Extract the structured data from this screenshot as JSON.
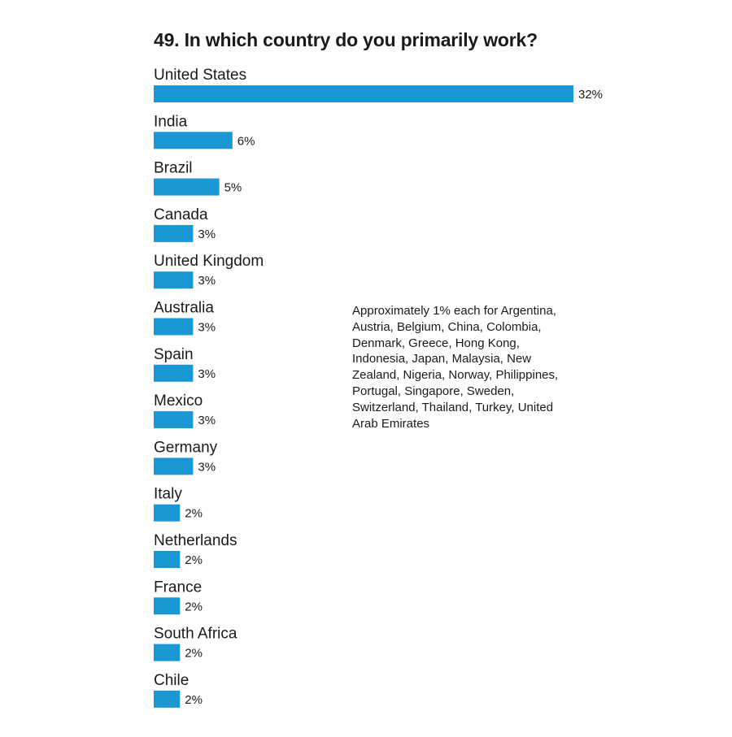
{
  "chart_data": {
    "type": "bar",
    "orientation": "horizontal",
    "title": "49. In which country do you primarily work?",
    "xlabel": "",
    "ylabel": "",
    "xlim": [
      0,
      32
    ],
    "grid": false,
    "bar_color": "#1b98d4",
    "categories": [
      "United States",
      "India",
      "Brazil",
      "Canada",
      "United Kingdom",
      "Australia",
      "Spain",
      "Mexico",
      "Germany",
      "Italy",
      "Netherlands",
      "France",
      "South Africa",
      "Chile"
    ],
    "values": [
      32,
      6,
      5,
      3,
      3,
      3,
      3,
      3,
      3,
      2,
      2,
      2,
      2,
      2
    ],
    "value_labels": [
      "32%",
      "6%",
      "5%",
      "3%",
      "3%",
      "3%",
      "3%",
      "3%",
      "3%",
      "2%",
      "2%",
      "2%",
      "2%",
      "2%"
    ],
    "annotation": "Approximately 1% each for Argentina, Austria, Belgium, China, Colombia, Denmark, Greece, Hong Kong, Indonesia, Japan, Malaysia, New Zealand, Nigeria, Norway, Philippines, Portugal, Singapore, Sweden, Switzerland, Thailand, Turkey, United Arab Emirates"
  }
}
